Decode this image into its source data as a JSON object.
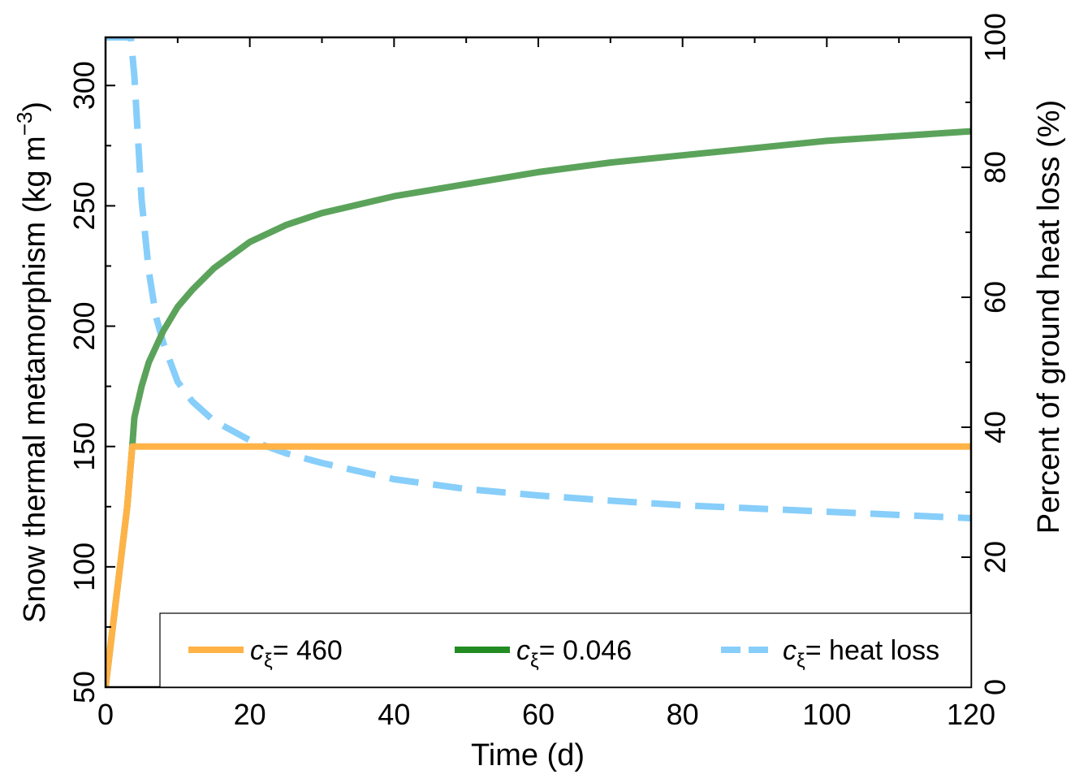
{
  "chart_data": {
    "type": "line",
    "xlabel": "Time (d)",
    "ylabel_left": "Snow thermal metamorphism (kg m−3)",
    "ylabel_left_base": "Snow thermal metamorphism (kg m",
    "ylabel_left_sup": "−3",
    "ylabel_left_close": ")",
    "ylabel_right": "Percent of ground heat loss (%)",
    "xlim": [
      0,
      120
    ],
    "ylim_left": [
      50,
      320
    ],
    "ylim_right": [
      0,
      100
    ],
    "x_ticks": [
      "0",
      "20",
      "40",
      "60",
      "80",
      "100",
      "120"
    ],
    "y_left_ticks": [
      "50",
      "100",
      "150",
      "200",
      "250",
      "300"
    ],
    "y_right_ticks": [
      "0",
      "20",
      "40",
      "60",
      "80",
      "100"
    ],
    "grid": false,
    "legend_placement": "bottom",
    "series": [
      {
        "name": "cξ= 460",
        "legend_main": "c",
        "legend_sub": "ξ",
        "legend_rest": "= 460",
        "axis": "left",
        "style": "solid",
        "color": "#FFB347",
        "x": [
          0,
          1,
          2,
          3,
          3.7,
          4,
          10,
          20,
          40,
          60,
          80,
          100,
          120
        ],
        "y": [
          50,
          75,
          100,
          125,
          150,
          150,
          150,
          150,
          150,
          150,
          150,
          150,
          150
        ]
      },
      {
        "name": "cξ= 0.046",
        "legend_main": "c",
        "legend_sub": "ξ",
        "legend_rest": "= 0.046",
        "axis": "left",
        "style": "solid",
        "color": "#5BA35B",
        "legend_color": "#228B22",
        "x": [
          0,
          1,
          2,
          3,
          3.7,
          4,
          5,
          6,
          8,
          10,
          12,
          15,
          20,
          25,
          30,
          40,
          50,
          60,
          70,
          80,
          90,
          100,
          110,
          120
        ],
        "y": [
          50,
          75,
          100,
          125,
          150,
          162,
          175,
          185,
          198,
          208,
          215,
          224,
          235,
          242,
          247,
          254,
          259,
          264,
          268,
          271,
          274,
          277,
          279,
          281
        ]
      },
      {
        "name": "cξ= heat loss",
        "legend_main": "c",
        "legend_sub": "ξ",
        "legend_rest": "= heat loss",
        "axis": "right",
        "style": "dashed",
        "color": "#87CEFA",
        "x": [
          0,
          3.5,
          4,
          5,
          6,
          7,
          8,
          9,
          10,
          12,
          15,
          20,
          25,
          30,
          40,
          50,
          60,
          70,
          80,
          90,
          100,
          110,
          120
        ],
        "y": [
          100,
          100,
          94,
          75,
          64,
          57,
          53,
          50,
          47,
          44,
          41,
          38,
          36,
          34.5,
          32,
          30.5,
          29.5,
          28.7,
          28,
          27.5,
          27,
          26.5,
          26
        ]
      }
    ]
  }
}
